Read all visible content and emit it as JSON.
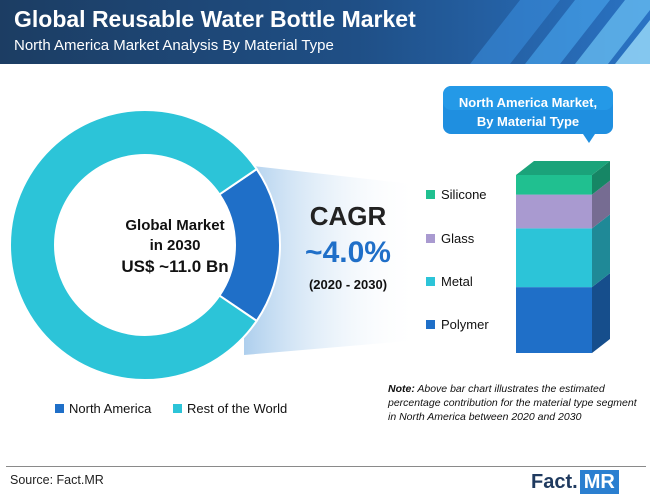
{
  "header": {
    "title": "Global Reusable Water Bottle Market",
    "subtitle": "North America Market Analysis By Material Type"
  },
  "donut": {
    "center_line1": "Global Market",
    "center_line2": "in 2030",
    "center_line3": "US$ ~11.0 Bn",
    "legend": [
      {
        "label": "North America",
        "color": "#1f6fc8"
      },
      {
        "label": "Rest of the World",
        "color": "#2cc4d8"
      }
    ]
  },
  "cagr": {
    "label": "CAGR",
    "value": "~4.0%",
    "period": "(2020 - 2030)"
  },
  "callout": {
    "line1": "North America Market,",
    "line2": "By Material Type"
  },
  "note": {
    "prefix": "Note:",
    "text": "Above bar chart illustrates the estimated percentage contribution for the material type segment in North America between 2020 and 2030"
  },
  "footer": {
    "source": "Source: Fact.MR",
    "logo_text": "Fact.",
    "logo_box": "MR"
  },
  "chart_data": [
    {
      "type": "pie",
      "categories": [
        "North America",
        "Rest of the World"
      ],
      "values": [
        19,
        81
      ],
      "colors": [
        "#1f6fc8",
        "#2cc4d8"
      ]
    },
    {
      "type": "bar",
      "stacked": true,
      "categories": [
        "Polymer",
        "Metal",
        "Glass",
        "Silicone"
      ],
      "values": [
        37,
        33,
        19,
        11
      ],
      "colors": [
        "#1f6fc8",
        "#2cc4d8",
        "#a99ad0",
        "#20c090"
      ],
      "legend_placement": "left"
    }
  ]
}
